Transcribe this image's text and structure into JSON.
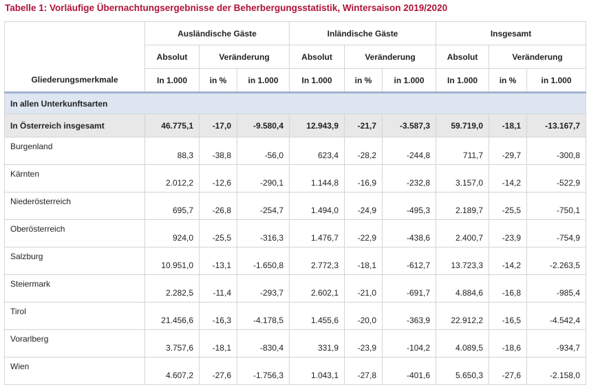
{
  "title": "Tabelle 1: Vorläufige Übernachtungsergebnisse der Beherbergungsstatistik, Wintersaison 2019/2020",
  "header": {
    "row_label": "Gliederungsmerkmale",
    "groups": [
      "Ausländische Gäste",
      "Inländische Gäste",
      "Insgesamt"
    ],
    "absolut": "Absolut",
    "veraenderung": "Veränderung",
    "unit_abs": "In 1.000",
    "unit_pct": "in %",
    "unit_1000": "in 1.000"
  },
  "section_label": "In allen Unterkunftsarten",
  "rows": [
    {
      "label": "In Österreich insgesamt",
      "values": [
        "46.775,1",
        "-17,0",
        "-9.580,4",
        "12.943,9",
        "-21,7",
        "-3.587,3",
        "59.719,0",
        "-18,1",
        "-13.167,7"
      ]
    },
    {
      "label": "Burgenland",
      "values": [
        "88,3",
        "-38,8",
        "-56,0",
        "623,4",
        "-28,2",
        "-244,8",
        "711,7",
        "-29,7",
        "-300,8"
      ]
    },
    {
      "label": "Kärnten",
      "values": [
        "2.012,2",
        "-12,6",
        "-290,1",
        "1.144,8",
        "-16,9",
        "-232,8",
        "3.157,0",
        "-14,2",
        "-522,9"
      ]
    },
    {
      "label": "Niederösterreich",
      "values": [
        "695,7",
        "-26,8",
        "-254,7",
        "1.494,0",
        "-24,9",
        "-495,3",
        "2.189,7",
        "-25,5",
        "-750,1"
      ]
    },
    {
      "label": "Oberösterreich",
      "values": [
        "924,0",
        "-25,5",
        "-316,3",
        "1.476,7",
        "-22,9",
        "-438,6",
        "2.400,7",
        "-23,9",
        "-754,9"
      ]
    },
    {
      "label": "Salzburg",
      "values": [
        "10.951,0",
        "-13,1",
        "-1.650,8",
        "2.772,3",
        "-18,1",
        "-612,7",
        "13.723,3",
        "-14,2",
        "-2.263,5"
      ]
    },
    {
      "label": "Steiermark",
      "values": [
        "2.282,5",
        "-11,4",
        "-293,7",
        "2.602,1",
        "-21,0",
        "-691,7",
        "4.884,6",
        "-16,8",
        "-985,4"
      ]
    },
    {
      "label": "Tirol",
      "values": [
        "21.456,6",
        "-16,3",
        "-4.178,5",
        "1.455,6",
        "-20,0",
        "-363,9",
        "22.912,2",
        "-16,5",
        "-4.542,4"
      ]
    },
    {
      "label": "Vorarlberg",
      "values": [
        "3.757,6",
        "-18,1",
        "-830,4",
        "331,9",
        "-23,9",
        "-104,2",
        "4.089,5",
        "-18,6",
        "-934,7"
      ]
    },
    {
      "label": "Wien",
      "values": [
        "4.607,2",
        "-27,6",
        "-1.756,3",
        "1.043,1",
        "-27,8",
        "-401,6",
        "5.650,3",
        "-27,6",
        "-2.158,0"
      ]
    }
  ]
}
